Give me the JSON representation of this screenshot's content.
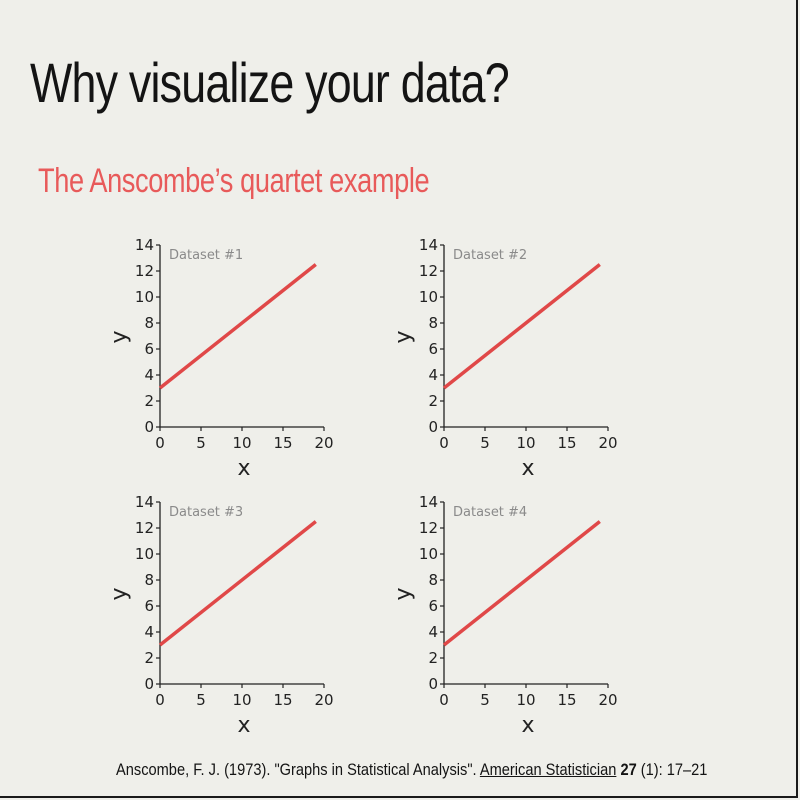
{
  "slide": {
    "title": "Why visualize your data?",
    "subtitle": "The Anscombe’s quartet example",
    "citation": {
      "authors_year": "Anscombe, F. J. (1973). \"Graphs in Statistical Analysis\". ",
      "journal": "American Statistician",
      "volume": "27",
      "issue_pages": "(1): 17–21"
    }
  },
  "colors": {
    "title": "#141414",
    "accent": "#e85a5a",
    "line": "#e04848",
    "dataset_label": "#8a8a8a"
  },
  "chart_data": [
    {
      "type": "line",
      "title": "Dataset #1",
      "xlabel": "x",
      "ylabel": "y",
      "xlim": [
        0,
        20
      ],
      "ylim": [
        0,
        14
      ],
      "xticks": [
        0,
        5,
        10,
        15,
        20
      ],
      "yticks": [
        0,
        2,
        4,
        6,
        8,
        10,
        12,
        14
      ],
      "grid": false,
      "series": [
        {
          "x": [
            0,
            19
          ],
          "y": [
            3.0,
            12.5
          ]
        }
      ]
    },
    {
      "type": "line",
      "title": "Dataset #2",
      "xlabel": "x",
      "ylabel": "y",
      "xlim": [
        0,
        20
      ],
      "ylim": [
        0,
        14
      ],
      "xticks": [
        0,
        5,
        10,
        15,
        20
      ],
      "yticks": [
        0,
        2,
        4,
        6,
        8,
        10,
        12,
        14
      ],
      "grid": false,
      "series": [
        {
          "x": [
            0,
            19
          ],
          "y": [
            3.0,
            12.5
          ]
        }
      ]
    },
    {
      "type": "line",
      "title": "Dataset #3",
      "xlabel": "x",
      "ylabel": "y",
      "xlim": [
        0,
        20
      ],
      "ylim": [
        0,
        14
      ],
      "xticks": [
        0,
        5,
        10,
        15,
        20
      ],
      "yticks": [
        0,
        2,
        4,
        6,
        8,
        10,
        12,
        14
      ],
      "grid": false,
      "series": [
        {
          "x": [
            0,
            19
          ],
          "y": [
            3.0,
            12.5
          ]
        }
      ]
    },
    {
      "type": "line",
      "title": "Dataset #4",
      "xlabel": "x",
      "ylabel": "y",
      "xlim": [
        0,
        20
      ],
      "ylim": [
        0,
        14
      ],
      "xticks": [
        0,
        5,
        10,
        15,
        20
      ],
      "yticks": [
        0,
        2,
        4,
        6,
        8,
        10,
        12,
        14
      ],
      "grid": false,
      "series": [
        {
          "x": [
            0,
            19
          ],
          "y": [
            3.0,
            12.5
          ]
        }
      ]
    }
  ]
}
